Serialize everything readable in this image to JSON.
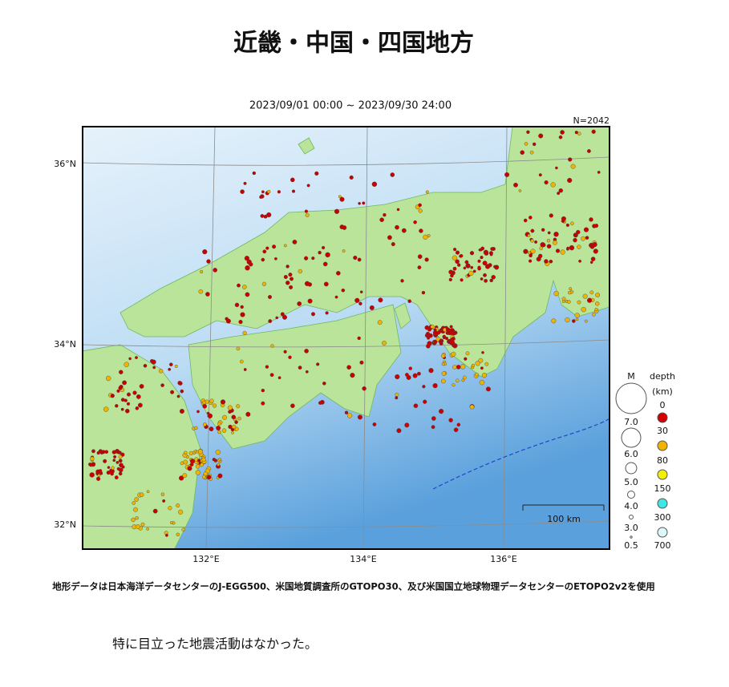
{
  "title": "近畿・中国・四国地方",
  "period": "2023/09/01 00:00 ~ 2023/09/30 24:00",
  "count": "N=2042",
  "map": {
    "lat_labels": [
      "36°N",
      "34°N",
      "32°N"
    ],
    "lon_labels": [
      "132°E",
      "134°E",
      "136°E"
    ],
    "scale_label": "100 km"
  },
  "legend": {
    "magnitude_title": "M",
    "magnitudes": [
      "7.0",
      "6.0",
      "5.0",
      "4.0",
      "3.0",
      "0.5"
    ],
    "depth_title": "depth",
    "depth_unit": "(km)",
    "depths": [
      "0",
      "30",
      "80",
      "150",
      "300",
      "700"
    ]
  },
  "footnote": "地形データは日本海洋データセンターのJ-EGG500、米国地質調査所のGTOPO30、及び米国国立地球物理データセンターのETOPO2v2を使用",
  "comment": "特に目立った地震活動はなかった。"
}
